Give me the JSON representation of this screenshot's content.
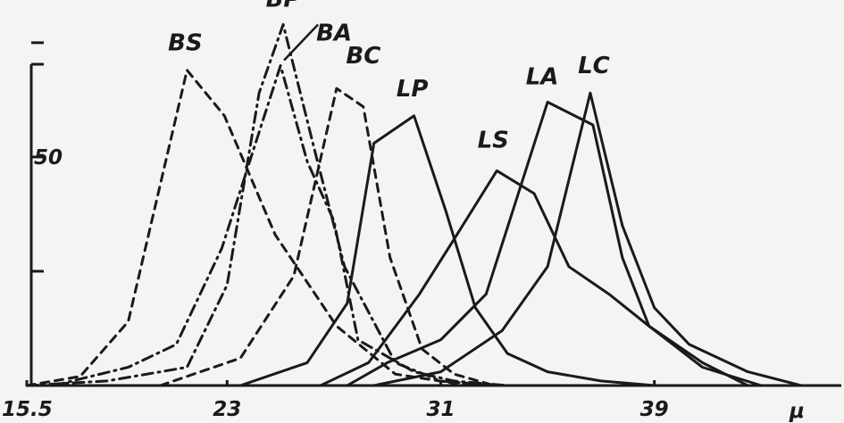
{
  "chart_data": {
    "type": "line",
    "title": "",
    "xlabel": "μ",
    "ylabel": "",
    "xlim": [
      15.5,
      46
    ],
    "ylim": [
      0,
      82
    ],
    "x_ticks": [
      {
        "value": 15.5,
        "label": "15.5"
      },
      {
        "value": 23,
        "label": "23"
      },
      {
        "value": 31,
        "label": "31"
      },
      {
        "value": 39,
        "label": "39"
      }
    ],
    "y_ticks": [
      {
        "value": 25,
        "label": ""
      },
      {
        "value": 50,
        "label": "50"
      },
      {
        "value": 75,
        "label": ""
      }
    ],
    "grid": false,
    "legend": "none",
    "series": [
      {
        "name": "BS",
        "style": "dashed",
        "x": [
          15.5,
          17.5,
          19.3,
          21.5,
          22.9,
          24.8,
          27.1,
          29.3,
          31.5,
          33.5
        ],
        "y": [
          0,
          2,
          14,
          69,
          59,
          33,
          13,
          2.5,
          0.5,
          0
        ]
      },
      {
        "name": "BP",
        "style": "dashdot",
        "x": [
          15.5,
          18.5,
          21.5,
          23.0,
          24.2,
          25.1,
          26.3,
          27.4,
          29.3,
          31.0,
          33.0
        ],
        "y": [
          0,
          1,
          4,
          22,
          64,
          79,
          51,
          26,
          5,
          1,
          0
        ]
      },
      {
        "name": "BA",
        "style": "dashdot",
        "x": [
          16.5,
          19.3,
          21.1,
          22.8,
          25.0,
          26.0,
          27.0,
          27.9,
          30.0,
          31.5,
          33.5
        ],
        "y": [
          0,
          4,
          9,
          30,
          70,
          49,
          36,
          10,
          3,
          1,
          0
        ]
      },
      {
        "name": "BC",
        "style": "dashed",
        "x": [
          20.5,
          23.5,
          25.5,
          27.1,
          28.1,
          29.1,
          30.3,
          31.5,
          33.0
        ],
        "y": [
          0,
          6,
          24,
          65,
          61,
          28,
          8,
          2.5,
          0
        ]
      },
      {
        "name": "LP",
        "style": "solid",
        "x": [
          23.5,
          26.0,
          27.5,
          28.5,
          30.0,
          31.2,
          32.3,
          33.5,
          35.0,
          37.0,
          39.0
        ],
        "y": [
          0,
          5,
          18,
          53,
          59,
          38,
          17,
          7,
          3,
          1,
          0
        ]
      },
      {
        "name": "LS",
        "style": "solid",
        "x": [
          26.5,
          28.3,
          30.2,
          31.5,
          33.1,
          34.5,
          35.8,
          37.3,
          38.8,
          40.8,
          42.5
        ],
        "y": [
          0,
          5,
          20,
          32,
          47,
          42,
          26,
          20,
          13,
          5,
          0
        ]
      },
      {
        "name": "LA",
        "style": "solid",
        "x": [
          27.5,
          29.0,
          31.0,
          32.7,
          35.0,
          36.7,
          37.8,
          38.8,
          40.8,
          43.0
        ],
        "y": [
          0,
          5,
          10,
          20,
          62,
          57,
          28,
          13,
          4,
          0
        ]
      },
      {
        "name": "LC",
        "style": "solid",
        "x": [
          28.5,
          31.0,
          33.3,
          35.0,
          36.6,
          37.8,
          39.0,
          40.3,
          42.5,
          44.5
        ],
        "y": [
          0,
          3,
          12,
          26,
          64,
          35,
          17,
          9,
          3,
          0
        ]
      }
    ]
  }
}
